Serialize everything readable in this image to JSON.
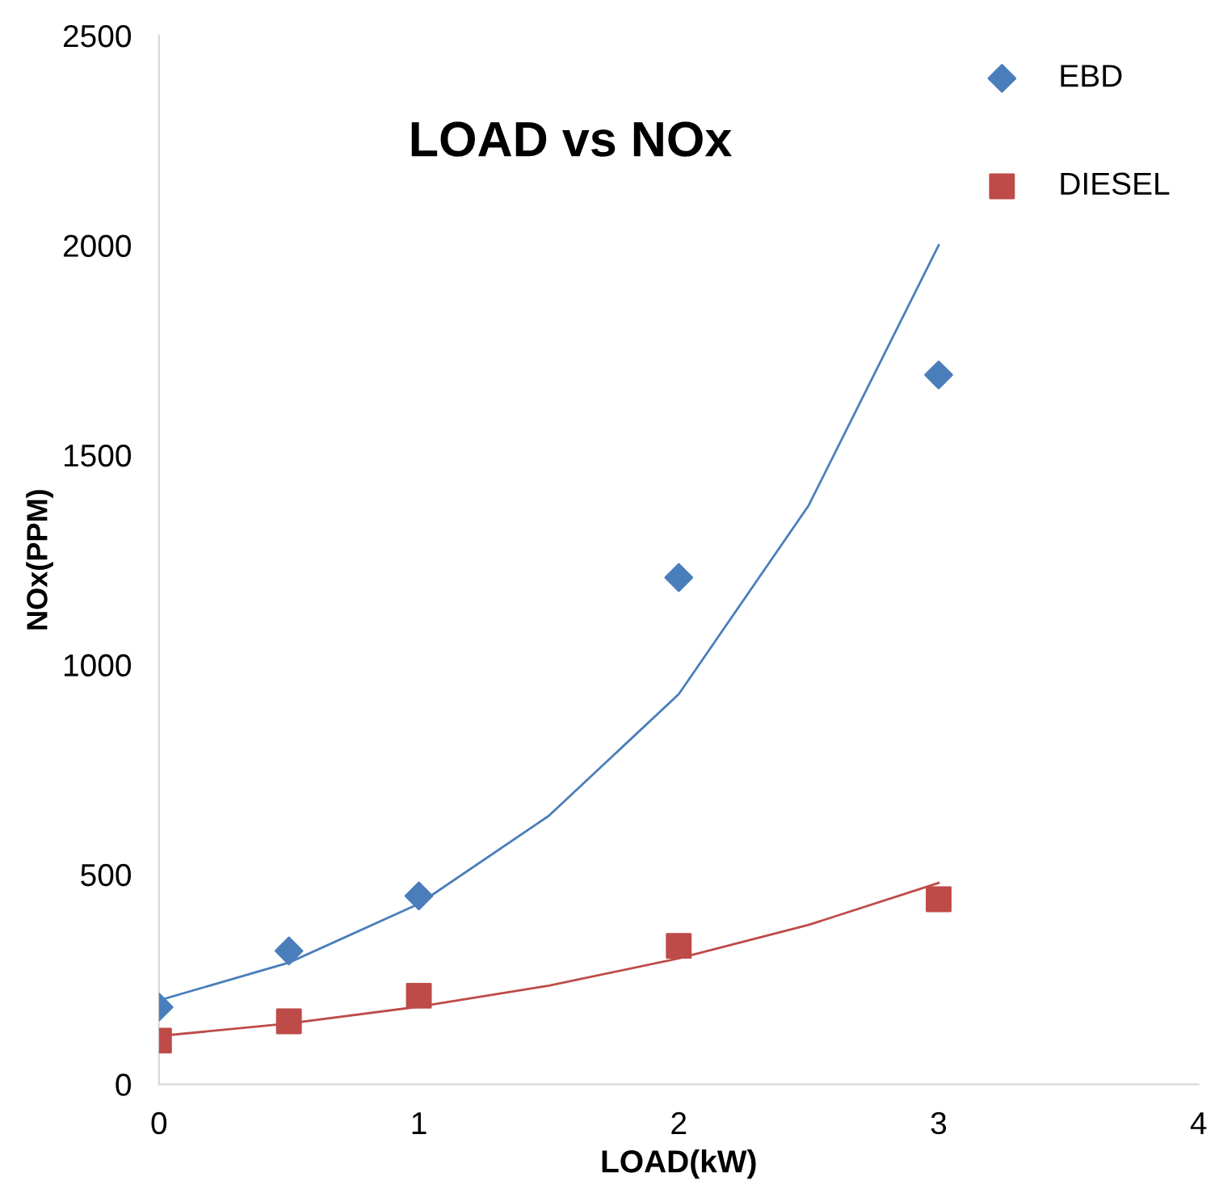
{
  "chart_data": {
    "type": "scatter",
    "title": "LOAD vs NOx",
    "xlabel": "LOAD(kW)",
    "ylabel": "NOx(PPM)",
    "xlim": [
      0,
      4
    ],
    "xticks": [
      0,
      1,
      2,
      3,
      4
    ],
    "ylim": [
      0,
      2500
    ],
    "yticks": [
      0,
      500,
      1000,
      1500,
      2000,
      2500
    ],
    "grid": false,
    "legend": "top right",
    "series": [
      {
        "name": "EBD",
        "color": "#4a7ebb",
        "marker": "diamond",
        "x": [
          0,
          0.5,
          1,
          2,
          3
        ],
        "values": [
          184,
          318,
          449,
          1208,
          1691
        ]
      },
      {
        "name": "DIESEL",
        "color": "#be4b48",
        "marker": "square",
        "x": [
          0,
          0.5,
          1,
          2,
          3
        ],
        "values": [
          104,
          150,
          211,
          330,
          441
        ]
      },
      {
        "type": "line",
        "color": "#4a7ebb",
        "marker": "none",
        "x": [
          0,
          0.5,
          1,
          1.5,
          2,
          2.5,
          3
        ],
        "values": [
          200,
          290,
          430,
          640,
          930,
          1380,
          2000
        ]
      },
      {
        "type": "line",
        "color": "#be4b48",
        "marker": "none",
        "x": [
          0,
          0.5,
          1,
          1.5,
          2,
          2.5,
          3
        ],
        "values": [
          115,
          145,
          185,
          235,
          300,
          380,
          480
        ]
      }
    ]
  }
}
